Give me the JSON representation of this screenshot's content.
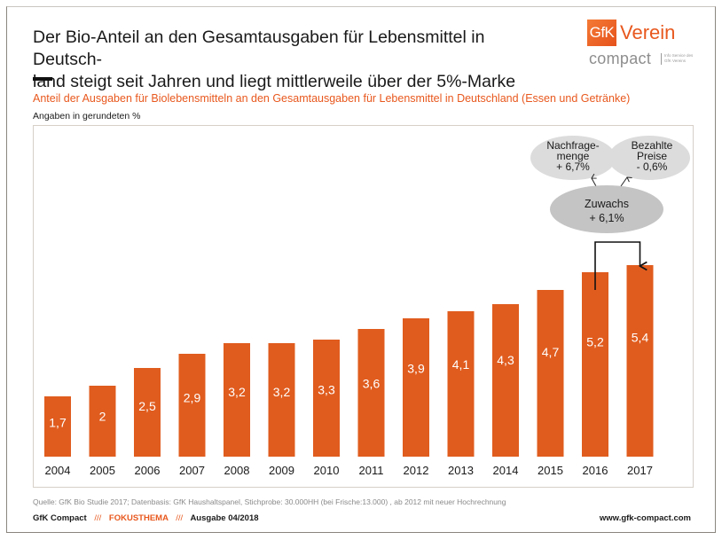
{
  "header": {
    "title_line1": "Der Bio-Anteil an den Gesamtausgaben für Lebensmittel in Deutsch-",
    "title_line2": "land steigt seit Jahren und liegt mittlerweile über der 5%-Marke",
    "subtitle": "Anteil der Ausgaben für Biolebensmitteln an den Gesamtausgaben für Lebensmittel in Deutschland (Essen und Getränke)",
    "unit_note": "Angaben in gerundeten  %"
  },
  "logo": {
    "box_text": "GfK",
    "word": "Verein",
    "compact": "compact",
    "info_line1": "Info Service des",
    "info_line2": "GfK Vereins",
    "brand_color": "#e8581e"
  },
  "chart_data": {
    "type": "bar",
    "title": "Anteil der Ausgaben für Biolebensmitteln an den Gesamtausgaben für Lebensmittel in Deutschland (Essen und Getränke)",
    "xlabel": "",
    "ylabel": "Angaben in gerundeten %",
    "categories": [
      "2004",
      "2005",
      "2006",
      "2007",
      "2008",
      "2009",
      "2010",
      "2011",
      "2012",
      "2013",
      "2014",
      "2015",
      "2016",
      "2017"
    ],
    "values": [
      1.7,
      2.0,
      2.5,
      2.9,
      3.2,
      3.2,
      3.3,
      3.6,
      3.9,
      4.1,
      4.3,
      4.7,
      5.2,
      5.4
    ],
    "value_labels": [
      "1,7",
      "2",
      "2,5",
      "2,9",
      "3,2",
      "3,2",
      "3,3",
      "3,6",
      "3,9",
      "4,1",
      "4,3",
      "4,7",
      "5,2",
      "5,4"
    ],
    "ylim": [
      0,
      9.5
    ],
    "grid": false,
    "bar_color": "#e05c1e",
    "annotations": {
      "connector": {
        "from": "2016",
        "to": "2017"
      },
      "growth_bubble": {
        "line1": "Zuwachs",
        "line2": "+ 6,1%"
      },
      "left_bubble": {
        "line1": "Nachfrage-",
        "line2": "menge",
        "line3": "+ 6,7%"
      },
      "right_bubble": {
        "line1": "Bezahlte",
        "line2": "Preise",
        "line3": "- 0,6%"
      }
    }
  },
  "footer": {
    "source": "Quelle: GfK Bio Studie 2017; Datenbasis: GfK Haushaltspanel, Stichprobe: 30.000HH (bei Frische:13.000) , ab 2012 mit neuer Hochrechnung",
    "publication": "GfK Compact",
    "separator": "///",
    "section": "FOKUSTHEMA",
    "issue": "Ausgabe 04/2018",
    "website": "www.gfk-compact.com"
  }
}
